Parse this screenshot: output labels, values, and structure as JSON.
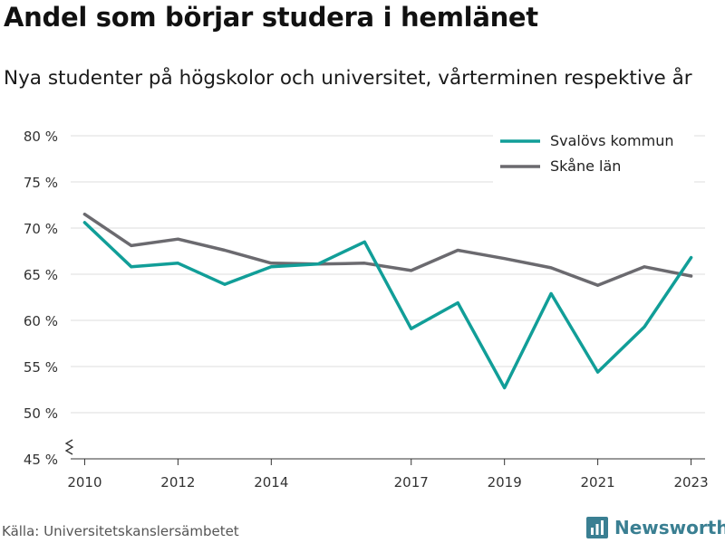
{
  "header": {
    "title": "Andel som börjar studera i hemlänet",
    "subtitle": "Nya studenter på högskolor och universitet, vårterminen respektive år"
  },
  "footer": {
    "source": "Källa: Universitetskanslersämbetet",
    "brand": "Newsworthy"
  },
  "colors": {
    "svalov": "#119e98",
    "skane": "#6b6a6f",
    "grid": "#dddddd",
    "axis": "#333333",
    "brand": "#3a7f92"
  },
  "chart_data": {
    "type": "line",
    "title": "Andel som börjar studera i hemlänet",
    "subtitle": "Nya studenter på högskolor och universitet, vårterminen respektive år",
    "x": [
      2010,
      2011,
      2012,
      2013,
      2014,
      2015,
      2016,
      2017,
      2018,
      2019,
      2020,
      2021,
      2022,
      2023
    ],
    "x_tick_values": [
      2010,
      2012,
      2014,
      2017,
      2019,
      2021,
      2023
    ],
    "x_tick_labels": [
      "2010",
      "2012",
      "2014",
      "2017",
      "2019",
      "2021",
      "2023"
    ],
    "y_tick_values": [
      45,
      50,
      55,
      60,
      65,
      70,
      75,
      80
    ],
    "y_tick_labels": [
      "45 %",
      "50 %",
      "55 %",
      "60 %",
      "65 %",
      "70 %",
      "75 %",
      "80 %"
    ],
    "ylim": [
      45,
      80
    ],
    "xlim": [
      2009.7,
      2023.3
    ],
    "y_axis_break": true,
    "grid": true,
    "legend_position": "top-right",
    "series": [
      {
        "name": "Svalövs kommun",
        "color": "#119e98",
        "values": [
          70.6,
          65.8,
          66.2,
          63.9,
          65.8,
          66.1,
          68.5,
          59.1,
          61.9,
          52.7,
          62.9,
          54.4,
          59.3,
          66.8
        ]
      },
      {
        "name": "Skåne län",
        "color": "#6b6a6f",
        "values": [
          71.5,
          68.1,
          68.8,
          67.6,
          66.2,
          66.1,
          66.2,
          65.4,
          67.6,
          66.7,
          65.7,
          63.8,
          65.8,
          64.8
        ]
      }
    ]
  }
}
